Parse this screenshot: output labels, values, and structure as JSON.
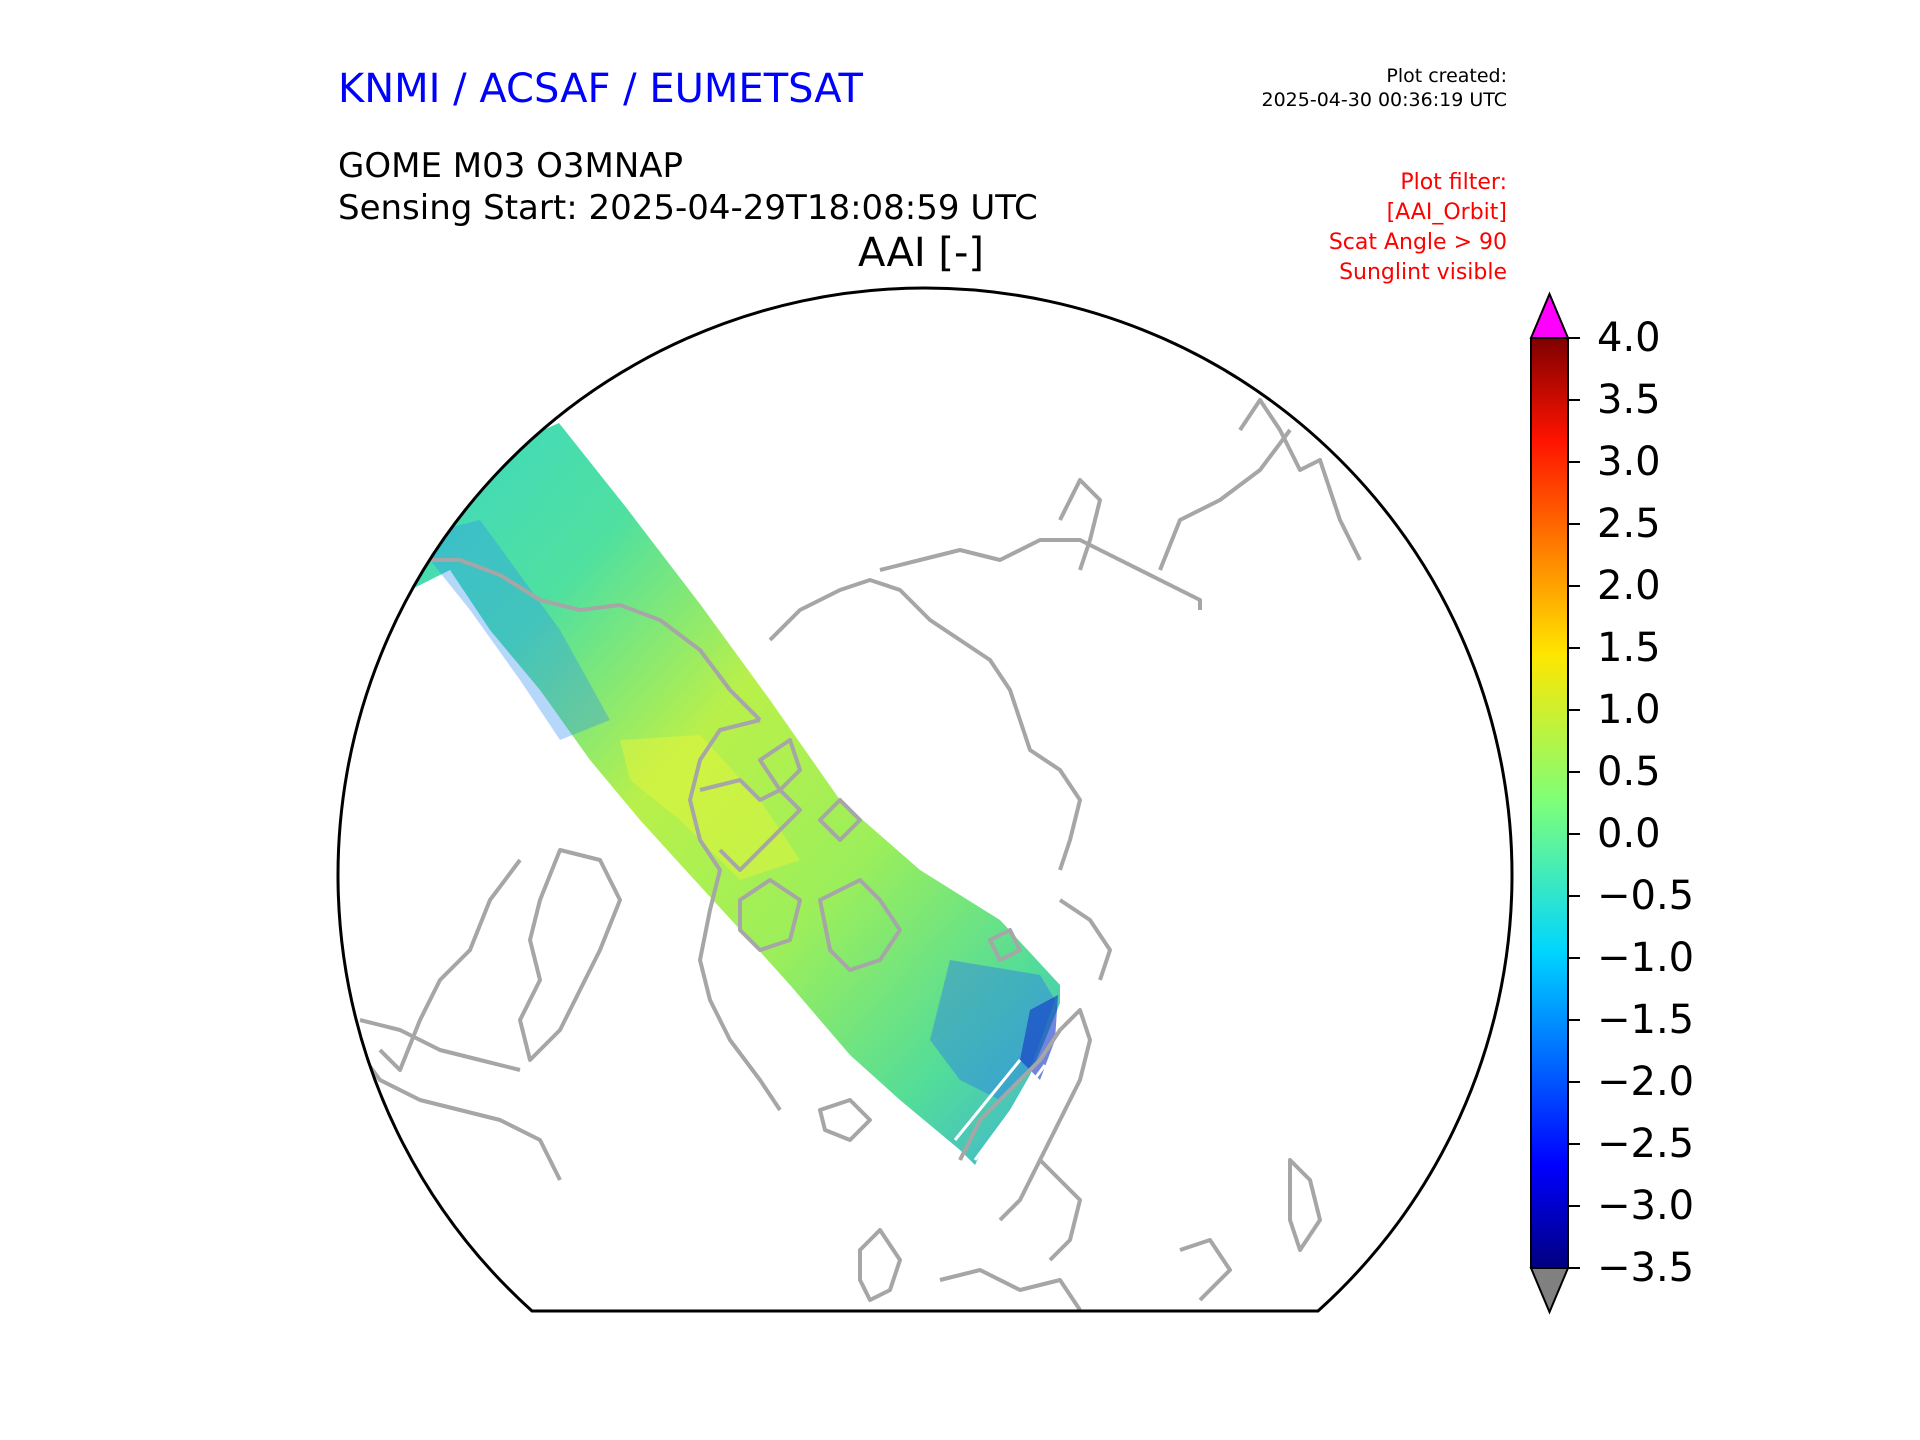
{
  "header": {
    "agency": "KNMI / ACSAF / EUMETSAT",
    "plot_created_label": "Plot created:",
    "plot_created_time": "2025-04-30 00:36:19 UTC",
    "product": "GOME M03 O3MNAP",
    "sensing_start": "Sensing Start: 2025-04-29T18:08:59 UTC",
    "variable_title": "AAI [-]"
  },
  "filter": {
    "heading": "Plot filter:",
    "lines": [
      "[AAI_Orbit]",
      "Scat Angle > 90",
      "Sunglint visible"
    ]
  },
  "colorbar": {
    "ticks": [
      "4.0",
      "3.5",
      "3.0",
      "2.5",
      "2.0",
      "1.5",
      "1.0",
      "0.5",
      "0.0",
      "−0.5",
      "−1.0",
      "−1.5",
      "−2.0",
      "−2.5",
      "−3.0",
      "−3.5"
    ],
    "min": -3.5,
    "max": 4.0,
    "over_color": "#ff00ff",
    "under_color": "#808080"
  },
  "map": {
    "projection": "north-polar stereographic",
    "coastline_color": "#a6a6a6",
    "boundary_color": "#000000"
  }
}
